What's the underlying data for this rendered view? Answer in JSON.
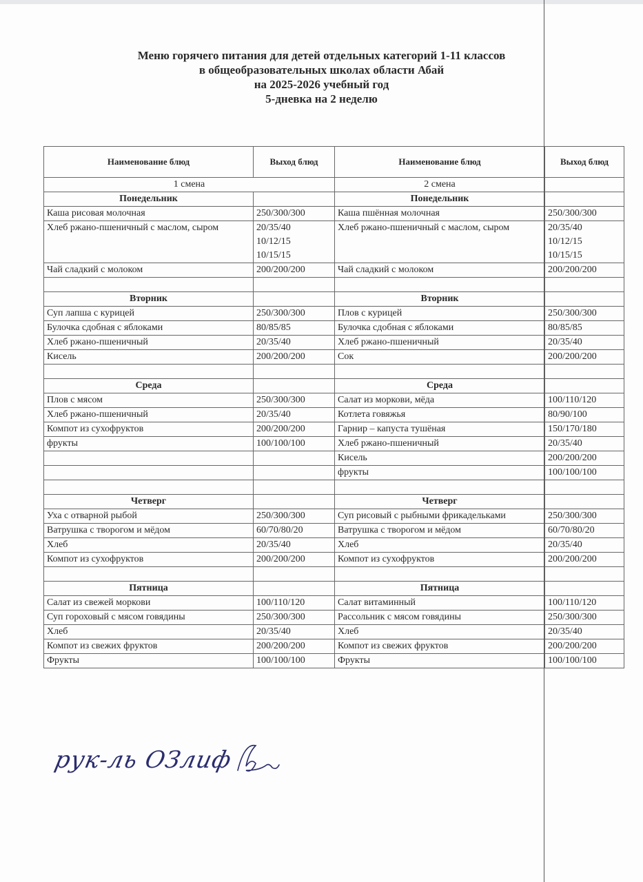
{
  "title": {
    "line1": "Меню горячего питания для детей отдельных категорий  1-11 классов",
    "line2": "в общеобразовательных школах области Абай",
    "line3": "на 2025-2026 учебный год",
    "line4": "5-дневка на 2 неделю"
  },
  "table": {
    "headers": [
      "Наименование блюд",
      "Выход блюд",
      "Наименование блюд",
      "Выход блюд"
    ],
    "shift1": "1 смена",
    "shift2": "2 смена",
    "days": [
      {
        "name": "Понедельник",
        "s1": [
          [
            "Каша рисовая молочная",
            "250/300/300"
          ],
          [
            "Хлеб ржано-пшеничный     с маслом, сыром",
            "20/35/40\n10/12/15\n10/15/15"
          ],
          [
            "Чай сладкий с молоком",
            "200/200/200"
          ]
        ],
        "s2": [
          [
            "Каша пшённая молочная",
            "250/300/300"
          ],
          [
            "Хлеб ржано-пшеничный     с маслом, сыром",
            "20/35/40\n10/12/15\n10/15/15"
          ],
          [
            "Чай сладкий с молоком",
            "200/200/200"
          ]
        ]
      },
      {
        "name": "Вторник",
        "s1": [
          [
            "Суп лапша с курицей",
            "250/300/300"
          ],
          [
            "Булочка сдобная с яблоками",
            "80/85/85"
          ],
          [
            "Хлеб ржано-пшеничный",
            "20/35/40"
          ],
          [
            "Кисель",
            "200/200/200"
          ]
        ],
        "s2": [
          [
            "Плов с курицей",
            "250/300/300"
          ],
          [
            "Булочка сдобная с яблоками",
            "80/85/85"
          ],
          [
            "Хлеб ржано-пшеничный",
            "20/35/40"
          ],
          [
            "Сок",
            "200/200/200"
          ]
        ]
      },
      {
        "name": "Среда",
        "s1": [
          [
            "Плов с мясом",
            "250/300/300"
          ],
          [
            "Хлеб ржано-пшеничный",
            "20/35/40"
          ],
          [
            "Компот из сухофруктов",
            "200/200/200"
          ],
          [
            "фрукты",
            "100/100/100"
          ]
        ],
        "s2": [
          [
            "Салат из моркови,  мёда",
            "100/110/120"
          ],
          [
            "Котлета говяжья",
            "80/90/100"
          ],
          [
            "Гарнир – капуста тушёная",
            "150/170/180"
          ],
          [
            "Хлеб ржано-пшеничный",
            "20/35/40"
          ],
          [
            "Кисель",
            "200/200/200"
          ],
          [
            "фрукты",
            "100/100/100"
          ]
        ]
      },
      {
        "name": "Четверг",
        "s1": [
          [
            "Уха с отварной рыбой",
            "250/300/300"
          ],
          [
            "Ватрушка с творогом и мёдом",
            "60/70/80/20"
          ],
          [
            "Хлеб",
            "20/35/40"
          ],
          [
            "Компот из сухофруктов",
            "200/200/200"
          ]
        ],
        "s2": [
          [
            "Суп рисовый с рыбными фрикадельками",
            "250/300/300"
          ],
          [
            "Ватрушка с творогом и мёдом",
            "60/70/80/20"
          ],
          [
            "Хлеб",
            "20/35/40"
          ],
          [
            "Компот из сухофруктов",
            "200/200/200"
          ]
        ]
      },
      {
        "name": "Пятница",
        "s1": [
          [
            "Салат из свежей моркови",
            "100/110/120"
          ],
          [
            "Суп гороховый с мясом говядины",
            "250/300/300"
          ],
          [
            "Хлеб",
            "20/35/40"
          ],
          [
            "Компот из свежих фруктов",
            "200/200/200"
          ],
          [
            "Фрукты",
            "100/100/100"
          ]
        ],
        "s2": [
          [
            "Салат витаминный",
            "100/110/120"
          ],
          [
            "Рассольник с мясом говядины",
            "250/300/300"
          ],
          [
            "Хлеб",
            "20/35/40"
          ],
          [
            "Компот из свежих фруктов",
            "200/200/200"
          ],
          [
            "Фрукты",
            "100/100/100"
          ]
        ]
      }
    ]
  },
  "signature": {
    "text": "рук-ль ОЗлиф"
  }
}
